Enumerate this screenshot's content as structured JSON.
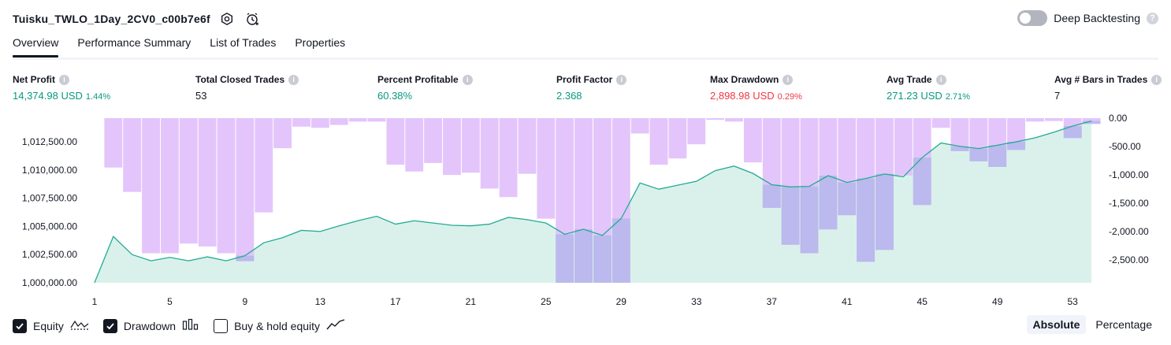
{
  "header": {
    "title": "Tuisku_TWLO_1Day_2CV0_c00b7e6f"
  },
  "deep_backtesting": {
    "label": "Deep Backtesting",
    "enabled": false,
    "help": "?"
  },
  "tabs": [
    {
      "label": "Overview",
      "active": true
    },
    {
      "label": "Performance Summary",
      "active": false
    },
    {
      "label": "List of Trades",
      "active": false
    },
    {
      "label": "Properties",
      "active": false
    }
  ],
  "metrics": [
    {
      "label": "Net Profit",
      "value": "14,374.98 USD",
      "pct": "1.44%",
      "color": "#089981"
    },
    {
      "label": "Total Closed Trades",
      "value": "53",
      "pct": "",
      "color": "#131722"
    },
    {
      "label": "Percent Profitable",
      "value": "60.38%",
      "pct": "",
      "color": "#089981"
    },
    {
      "label": "Profit Factor",
      "value": "2.368",
      "pct": "",
      "color": "#089981"
    },
    {
      "label": "Max Drawdown",
      "value": "2,898.98 USD",
      "pct": "0.29%",
      "color": "#f23645"
    },
    {
      "label": "Avg Trade",
      "value": "271.23 USD",
      "pct": "2.71%",
      "color": "#089981"
    },
    {
      "label": "Avg # Bars in Trades",
      "value": "7",
      "pct": "",
      "color": "#131722"
    }
  ],
  "colors": {
    "equity_line": "#22ab94",
    "equity_fill": "#d8f0ea",
    "drawdown_bar": "#e1c2fb",
    "drawdown_overlap": "#b8b8ec",
    "positive": "#089981",
    "negative": "#f23645"
  },
  "chart_data": {
    "type": "area",
    "x_ticks": [
      "1",
      "5",
      "9",
      "13",
      "17",
      "21",
      "25",
      "29",
      "33",
      "37",
      "41",
      "45",
      "49",
      "53"
    ],
    "equity_axis": {
      "ticks": [
        "1,012,500.00",
        "1,010,000.00",
        "1,007,500.00",
        "1,005,000.00",
        "1,002,500.00",
        "1,000,000.00"
      ],
      "ylim": [
        1000000,
        1014600
      ]
    },
    "drawdown_axis": {
      "ticks": [
        "0.00",
        "-500.00",
        "-1,000.00",
        "-1,500.00",
        "-2,000.00",
        "-2,500.00"
      ],
      "ylim": [
        -2900,
        0
      ]
    },
    "series": [
      {
        "name": "Equity",
        "x": [
          1,
          2,
          3,
          4,
          5,
          6,
          7,
          8,
          9,
          10,
          11,
          12,
          13,
          14,
          15,
          16,
          17,
          18,
          19,
          20,
          21,
          22,
          23,
          24,
          25,
          26,
          27,
          28,
          29,
          30,
          31,
          32,
          33,
          34,
          35,
          36,
          37,
          38,
          39,
          40,
          41,
          42,
          43,
          44,
          45,
          46,
          47,
          48,
          49,
          50,
          51,
          52,
          53,
          54
        ],
        "values": [
          1000000,
          1004100,
          1002500,
          1001950,
          1002250,
          1001950,
          1002300,
          1001950,
          1002400,
          1003550,
          1004000,
          1004650,
          1004550,
          1005050,
          1005500,
          1005900,
          1005200,
          1005500,
          1005300,
          1005100,
          1005050,
          1005200,
          1005800,
          1005600,
          1005300,
          1004300,
          1004750,
          1004200,
          1005700,
          1008850,
          1008300,
          1008650,
          1009000,
          1009950,
          1010350,
          1009700,
          1008700,
          1008500,
          1008550,
          1009500,
          1008900,
          1009250,
          1009650,
          1009400,
          1011100,
          1012400,
          1012100,
          1011900,
          1012200,
          1012500,
          1012850,
          1013350,
          1013900,
          1014350
        ]
      },
      {
        "name": "Drawdown",
        "x": [
          1,
          2,
          3,
          4,
          5,
          6,
          7,
          8,
          9,
          10,
          11,
          12,
          13,
          14,
          15,
          16,
          17,
          18,
          19,
          20,
          21,
          22,
          23,
          24,
          25,
          26,
          27,
          28,
          29,
          30,
          31,
          32,
          33,
          34,
          35,
          36,
          37,
          38,
          39,
          40,
          41,
          42,
          43,
          44,
          45,
          46,
          47,
          48,
          49,
          50,
          51,
          52,
          53,
          54
        ],
        "values": [
          0,
          -870,
          -1300,
          -2380,
          -2380,
          -2210,
          -2260,
          -2380,
          -2520,
          -1660,
          -530,
          -150,
          -170,
          -120,
          -60,
          -60,
          -820,
          -940,
          -790,
          -1000,
          -960,
          -1240,
          -1390,
          -980,
          -1770,
          -2900,
          -2900,
          -2900,
          -2900,
          -270,
          -820,
          -710,
          -460,
          -30,
          -60,
          -780,
          -1580,
          -2230,
          -2380,
          -1960,
          -1710,
          -2530,
          -2320,
          -1010,
          -1530,
          -170,
          -580,
          -760,
          -860,
          -560,
          -60,
          -50,
          -350,
          -100
        ]
      }
    ]
  },
  "legend": {
    "items": [
      {
        "label": "Equity",
        "checked": true
      },
      {
        "label": "Drawdown",
        "checked": true
      },
      {
        "label": "Buy & hold equity",
        "checked": false
      }
    ]
  },
  "mode": {
    "absolute": "Absolute",
    "percentage": "Percentage"
  }
}
